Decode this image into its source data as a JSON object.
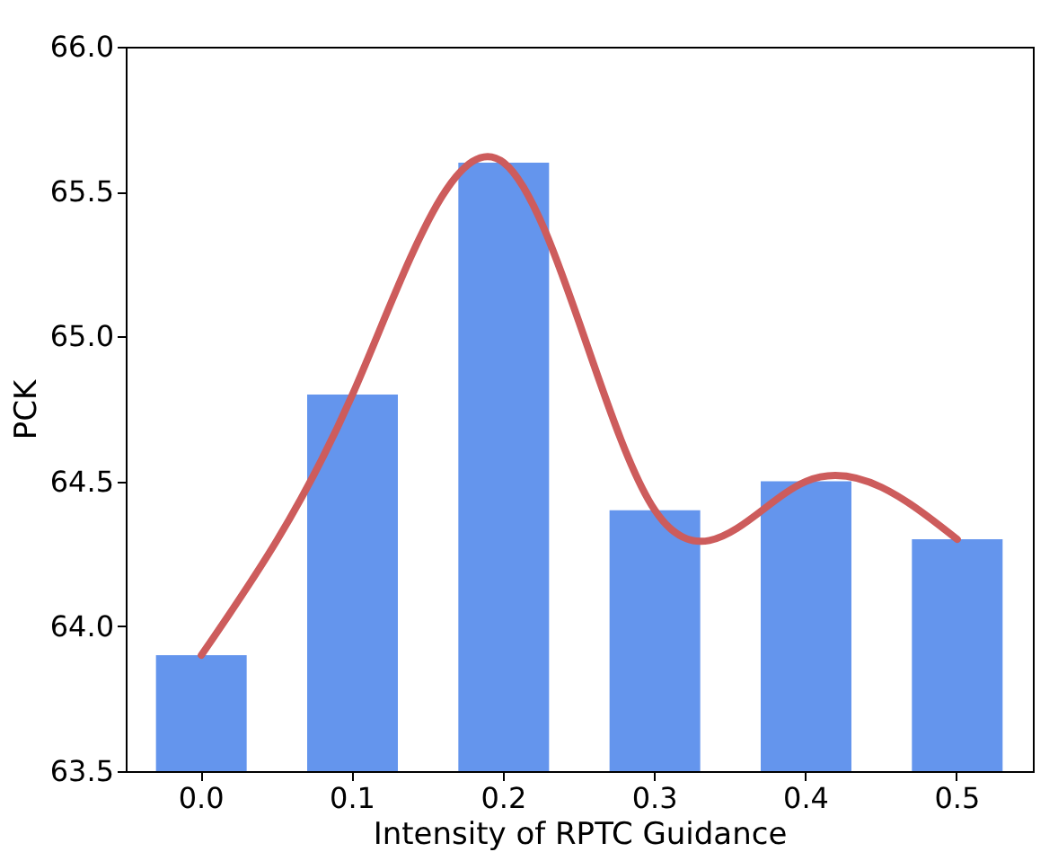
{
  "chart_data": {
    "type": "bar",
    "xlabel": "Intensity of RPTC Guidance",
    "ylabel": "PCK",
    "categories": [
      "0.0",
      "0.1",
      "0.2",
      "0.3",
      "0.4",
      "0.5"
    ],
    "series": [
      {
        "type": "bar",
        "color": "#6495ed",
        "values": [
          63.9,
          64.8,
          65.6,
          64.4,
          64.5,
          64.3
        ]
      },
      {
        "type": "line",
        "color": "#cd5c5c",
        "values": [
          63.9,
          64.8,
          65.6,
          64.4,
          64.5,
          64.3
        ]
      }
    ],
    "ylim": [
      63.5,
      66.0
    ],
    "yticks": [
      {
        "value": 63.5,
        "label": "63.5"
      },
      {
        "value": 64,
        "label": "64.0"
      },
      {
        "value": 64.5,
        "label": "64.5"
      },
      {
        "value": 65,
        "label": "65.0"
      },
      {
        "value": 65.5,
        "label": "65.5"
      },
      {
        "value": 66,
        "label": "66.0"
      }
    ],
    "grid": false
  }
}
